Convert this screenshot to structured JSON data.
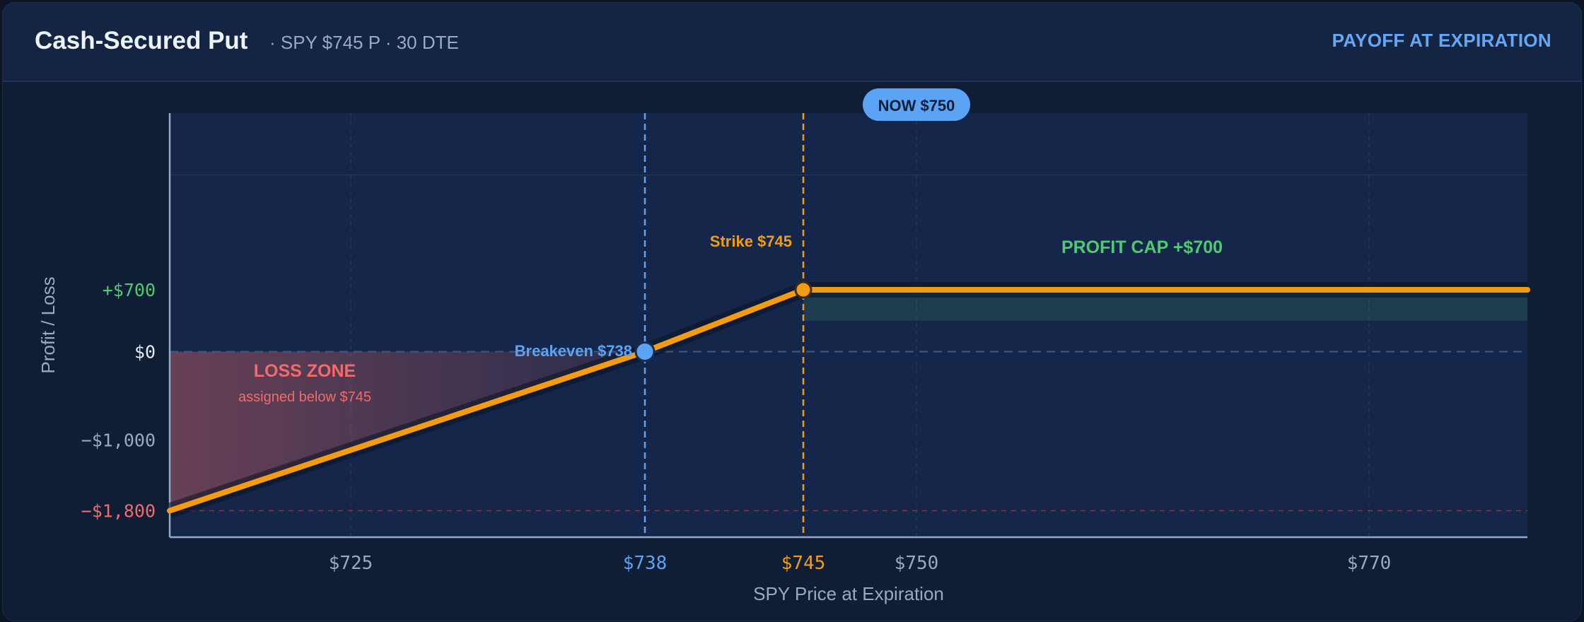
{
  "header": {
    "title": "Cash-Secured Put",
    "subtitle": "·  SPY $745 P · 30 DTE",
    "tagline": "PAYOFF AT EXPIRATION"
  },
  "chart_data": {
    "type": "line",
    "title": "Cash-Secured Put",
    "subtitle": "SPY $745 P · 30 DTE",
    "xlabel": "SPY Price at Expiration",
    "ylabel": "Profit / Loss",
    "xlim": [
      717,
      777
    ],
    "ylim": [
      -2100,
      2700
    ],
    "x_ticks": [
      {
        "value": 725,
        "label": "$725",
        "role": "normal"
      },
      {
        "value": 738,
        "label": "$738",
        "role": "breakeven"
      },
      {
        "value": 745,
        "label": "$745",
        "role": "strike"
      },
      {
        "value": 750,
        "label": "$750",
        "role": "normal"
      },
      {
        "value": 770,
        "label": "$770",
        "role": "normal"
      }
    ],
    "y_ticks": [
      {
        "value": 700,
        "label": "+$700",
        "role": "profit"
      },
      {
        "value": 0,
        "label": "$0",
        "role": "zero"
      },
      {
        "value": -1000,
        "label": "−$1,000",
        "role": "normal"
      },
      {
        "value": -1800,
        "label": "−$1,800",
        "role": "loss"
      }
    ],
    "series": [
      {
        "name": "Payoff",
        "points": [
          {
            "x": 717,
            "y": -1800
          },
          {
            "x": 738,
            "y": 0
          },
          {
            "x": 745,
            "y": 700
          },
          {
            "x": 777,
            "y": 700
          }
        ]
      }
    ],
    "markers": {
      "breakeven": {
        "x": 738,
        "label": "Breakeven $738"
      },
      "strike": {
        "x": 745,
        "label": "Strike $745"
      },
      "now": {
        "x": 750,
        "label": "NOW $750"
      }
    },
    "annotations": {
      "profit_cap": "PROFIT CAP  +$700",
      "loss_zone": "LOSS ZONE",
      "loss_note": "assigned below $745"
    },
    "colors": {
      "payoff": "#f39c12",
      "breakeven": "#5ba4f5",
      "profit": "#4ecb71",
      "loss": "#f16b6b",
      "axis": "#9aa9c2"
    },
    "grid": true
  }
}
